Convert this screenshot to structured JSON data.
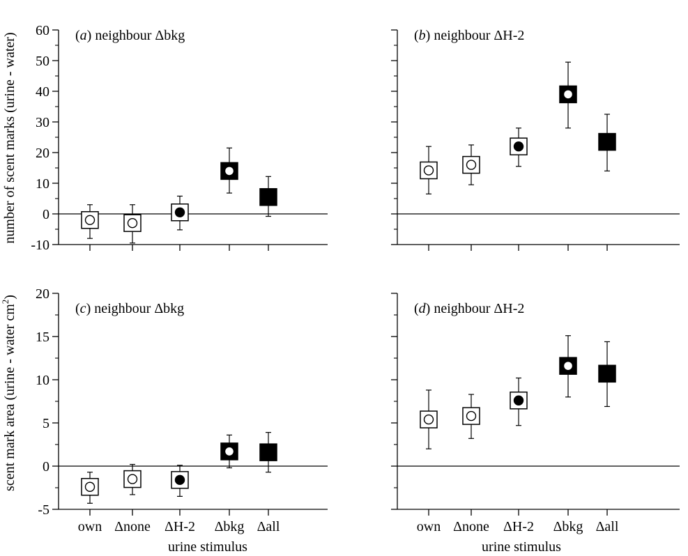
{
  "figure": {
    "ylabel_top": "number of scent marks (urine - water)",
    "ylabel_bottom_main": "scent mark area (urine - water cm",
    "ylabel_bottom_sup": "2",
    "ylabel_bottom_end": ")",
    "xlabel": "urine stimulus"
  },
  "chart_data": [
    {
      "type": "scatter",
      "panel": "a",
      "title_prefix": "(",
      "title_letter": "a",
      "title_suffix": ") neighbour Δbkg",
      "categories": [
        "own",
        "Δnone",
        "ΔH-2",
        "Δbkg",
        "Δall"
      ],
      "values": [
        -2,
        -3,
        0.5,
        14,
        5.5
      ],
      "error_low": [
        -8,
        -9.5,
        -5.2,
        6.8,
        -0.8
      ],
      "error_high": [
        3,
        3,
        5.8,
        21.5,
        12.2
      ],
      "markers": [
        "open-square-open-circle",
        "open-square-open-circle",
        "open-square-filled-circle",
        "filled-square-open-circle",
        "filled-square"
      ],
      "ylim": [
        -10,
        60
      ],
      "yticks": [
        -10,
        0,
        10,
        20,
        30,
        40,
        50,
        60
      ],
      "show_y_tick_labels": true,
      "show_x_tick_labels": false
    },
    {
      "type": "scatter",
      "panel": "b",
      "title_prefix": "(",
      "title_letter": "b",
      "title_suffix": ") neighbour ΔH-2",
      "categories": [
        "own",
        "Δnone",
        "ΔH-2",
        "Δbkg",
        "Δall"
      ],
      "values": [
        14.2,
        16,
        22,
        39,
        23.5
      ],
      "error_low": [
        6.5,
        9.5,
        15.5,
        28,
        14
      ],
      "error_high": [
        22,
        22.5,
        28,
        49.5,
        32.5
      ],
      "markers": [
        "open-square-open-circle",
        "open-square-open-circle",
        "open-square-filled-circle",
        "filled-square-open-circle",
        "filled-square"
      ],
      "ylim": [
        -10,
        60
      ],
      "yticks": [
        -10,
        0,
        10,
        20,
        30,
        40,
        50,
        60
      ],
      "show_y_tick_labels": false,
      "show_x_tick_labels": false
    },
    {
      "type": "scatter",
      "panel": "c",
      "title_prefix": "(",
      "title_letter": "c",
      "title_suffix": ") neighbour Δbkg",
      "categories": [
        "own",
        "Δnone",
        "ΔH-2",
        "Δbkg",
        "Δall"
      ],
      "values": [
        -2.4,
        -1.5,
        -1.6,
        1.7,
        1.6
      ],
      "error_low": [
        -4.3,
        -3.3,
        -3.5,
        -0.2,
        -0.7
      ],
      "error_high": [
        -0.7,
        0.2,
        0.1,
        3.6,
        3.9
      ],
      "markers": [
        "open-square-open-circle",
        "open-square-open-circle",
        "open-square-filled-circle",
        "filled-square-open-circle",
        "filled-square"
      ],
      "ylim": [
        -5,
        20
      ],
      "yticks": [
        -5,
        0,
        5,
        10,
        15,
        20
      ],
      "show_y_tick_labels": true,
      "show_x_tick_labels": true
    },
    {
      "type": "scatter",
      "panel": "d",
      "title_prefix": "(",
      "title_letter": "d",
      "title_suffix": ") neighbour ΔH-2",
      "categories": [
        "own",
        "Δnone",
        "ΔH-2",
        "Δbkg",
        "Δall"
      ],
      "values": [
        5.4,
        5.8,
        7.6,
        11.6,
        10.7
      ],
      "error_low": [
        2,
        3.2,
        4.7,
        8,
        6.9
      ],
      "error_high": [
        8.8,
        8.3,
        10.2,
        15.1,
        14.4
      ],
      "markers": [
        "open-square-open-circle",
        "open-square-open-circle",
        "open-square-filled-circle",
        "filled-square-open-circle",
        "filled-square"
      ],
      "ylim": [
        -5,
        20
      ],
      "yticks": [
        -5,
        0,
        5,
        10,
        15,
        20
      ],
      "show_y_tick_labels": false,
      "show_x_tick_labels": true
    }
  ]
}
